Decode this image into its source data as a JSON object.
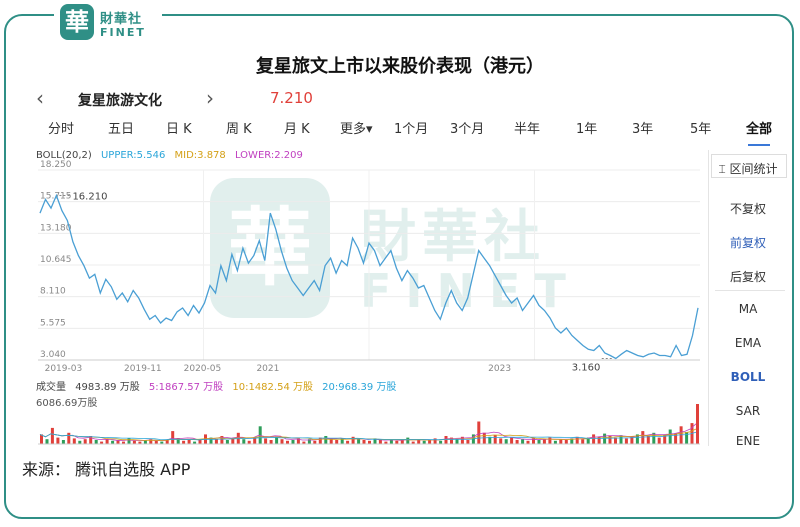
{
  "brand": {
    "badge": "華",
    "name_cn": "財華社",
    "name_en": "FINET"
  },
  "watermark": {
    "badge": "華",
    "name_cn": "財華社",
    "name_en": "FINET"
  },
  "title": "复星旅文上市以来股价表现（港元）",
  "stock": {
    "name": "复星旅游文化",
    "price": "7.210",
    "nav_left": "‹",
    "nav_right": "›"
  },
  "tabs": [
    "分时",
    "五日",
    "日 K",
    "周 K",
    "月 K",
    "更多▾",
    "1个月",
    "3个月",
    "半年",
    "1年",
    "3年",
    "5年",
    "全部"
  ],
  "side_panel": {
    "range_stat": "区间统计",
    "items": [
      "不复权",
      "前复权",
      "后复权",
      "MA",
      "EMA",
      "BOLL",
      "SAR",
      "ENE"
    ]
  },
  "indicator_legend": {
    "name": "BOLL(20,2)",
    "upper": "UPPER:5.546",
    "mid": "MID:3.878",
    "lower": "LOWER:2.209"
  },
  "volume_legend": {
    "name": "成交量",
    "value": "4983.89 万股",
    "ma5": "5:1867.57 万股",
    "ma10": "10:1482.54 万股",
    "ma20": "20:968.39 万股",
    "max": "6086.69万股"
  },
  "source": "来源：  腾讯自选股 APP",
  "colors": {
    "brand": "#2f8f86",
    "price_line": "#4a9fd4",
    "price_up": "#e0403a",
    "upper": "#2aa5d9",
    "mid": "#d4a017",
    "lower": "#c040c0",
    "vol_up": "#e0403a",
    "vol_down": "#2e9e5a"
  },
  "chart_data": {
    "type": "line",
    "title": "复星旅文上市以来股价表现（港元）",
    "y_ticks": [
      "18.250",
      "15.715",
      "13.180",
      "10.645",
      "8.110",
      "5.575",
      "3.040"
    ],
    "ylim": [
      3.04,
      18.25
    ],
    "x_ticks": [
      "2019-03",
      "2019-11",
      "2020-05",
      "2021",
      "2023"
    ],
    "annotations": [
      {
        "label": "16.210",
        "x": "2019-03",
        "y": 16.21
      },
      {
        "label": "3.160",
        "x": "2023",
        "y": 3.16
      }
    ],
    "series": [
      {
        "values": [
          14.8,
          15.9,
          15.2,
          16.21,
          15.0,
          14.2,
          12.5,
          11.4,
          10.6,
          9.6,
          9.9,
          8.4,
          9.5,
          8.9,
          7.9,
          8.4,
          7.7,
          8.6,
          8.0,
          7.1,
          6.3,
          6.6,
          6.0,
          6.4,
          6.2,
          6.9,
          7.2,
          6.6,
          7.4,
          6.8,
          7.6,
          9.0,
          8.4,
          10.6,
          9.4,
          11.5,
          10.2,
          12.0,
          10.8,
          11.4,
          12.6,
          11.0,
          14.8,
          13.5,
          11.8,
          10.4,
          9.4,
          8.8,
          8.2,
          8.8,
          9.4,
          8.6,
          10.6,
          11.2,
          10.0,
          11.0,
          10.6,
          12.8,
          12.0,
          10.8,
          12.4,
          11.8,
          10.6,
          11.2,
          11.8,
          10.4,
          9.4,
          10.2,
          9.6,
          8.8,
          9.0,
          8.0,
          7.0,
          6.3,
          7.6,
          8.6,
          7.6,
          7.0,
          8.0,
          9.9,
          11.8,
          11.2,
          10.6,
          9.8,
          9.0,
          8.2,
          7.6,
          8.0,
          7.0,
          7.6,
          8.2,
          7.4,
          7.0,
          6.4,
          5.6,
          5.2,
          5.6,
          5.0,
          4.6,
          4.2,
          3.9,
          3.8,
          4.2,
          3.6,
          3.4,
          3.16,
          3.5,
          3.8,
          3.6,
          3.4,
          3.3,
          3.5,
          3.6,
          3.4,
          3.4,
          3.3,
          4.2,
          3.4,
          3.5,
          5.0,
          7.21
        ]
      }
    ],
    "volume": {
      "max_label": "6086.69万股",
      "values": [
        1.2,
        0.6,
        2.0,
        0.8,
        0.5,
        1.4,
        0.7,
        0.4,
        0.6,
        1.0,
        0.5,
        0.3,
        0.6,
        0.4,
        0.5,
        0.3,
        0.7,
        0.4,
        0.3,
        0.5,
        0.6,
        0.4,
        0.3,
        0.5,
        1.6,
        0.7,
        0.4,
        0.6,
        0.3,
        0.5,
        1.2,
        0.8,
        0.6,
        1.0,
        0.5,
        0.7,
        1.4,
        0.6,
        0.4,
        0.8,
        2.2,
        0.7,
        0.5,
        0.9,
        0.6,
        0.4,
        0.5,
        0.7,
        0.3,
        0.6,
        0.4,
        0.8,
        1.0,
        0.6,
        0.5,
        0.7,
        0.4,
        0.9,
        0.6,
        0.5,
        0.4,
        0.7,
        0.5,
        0.3,
        0.6,
        0.4,
        0.5,
        0.8,
        0.3,
        0.6,
        0.4,
        0.5,
        0.7,
        0.4,
        1.0,
        0.8,
        0.6,
        0.9,
        0.5,
        1.2,
        2.8,
        1.4,
        0.9,
        1.1,
        0.7,
        0.6,
        0.8,
        0.5,
        0.6,
        0.4,
        0.7,
        0.5,
        0.6,
        0.8,
        0.4,
        0.6,
        0.5,
        0.7,
        0.9,
        0.6,
        0.8,
        1.2,
        0.9,
        1.3,
        1.0,
        0.8,
        1.1,
        0.7,
        0.9,
        1.2,
        1.6,
        1.0,
        1.4,
        0.8,
        1.1,
        1.8,
        1.3,
        2.2,
        1.5,
        2.6,
        4.98
      ]
    }
  }
}
